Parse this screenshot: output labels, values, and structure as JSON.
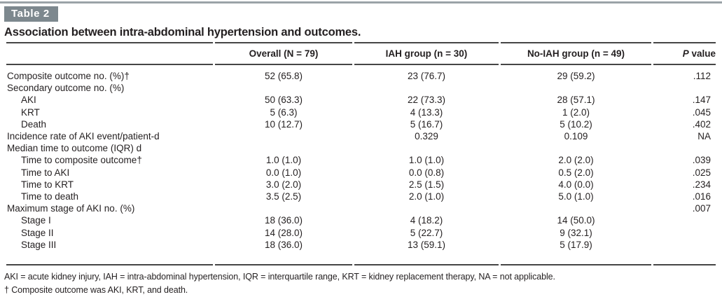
{
  "table_label": "Table 2",
  "title": "Association between intra-abdominal hypertension and outcomes.",
  "columns": [
    "",
    "Overall (N = 79)",
    "IAH group (n = 30)",
    "No-IAH group (n = 49)",
    "P value"
  ],
  "rows": [
    {
      "label": "Composite outcome no. (%)†",
      "indent": 0,
      "overall": "52 (65.8)",
      "iah": "23 (76.7)",
      "no_iah": "29 (59.2)",
      "p": ".112"
    },
    {
      "label": "Secondary outcome no. (%)",
      "indent": 0,
      "overall": "",
      "iah": "",
      "no_iah": "",
      "p": ""
    },
    {
      "label": "AKI",
      "indent": 1,
      "overall": "50 (63.3)",
      "iah": "22 (73.3)",
      "no_iah": "28 (57.1)",
      "p": ".147"
    },
    {
      "label": "KRT",
      "indent": 1,
      "overall": "5 (6.3)",
      "iah": "4 (13.3)",
      "no_iah": "1 (2.0)",
      "p": ".045"
    },
    {
      "label": "Death",
      "indent": 1,
      "overall": "10 (12.7)",
      "iah": "5 (16.7)",
      "no_iah": "5 (10.2)",
      "p": ".402"
    },
    {
      "label": "Incidence rate of AKI event/patient-d",
      "indent": 0,
      "overall": "",
      "iah": "0.329",
      "no_iah": "0.109",
      "p": "NA"
    },
    {
      "label": "Median time to outcome (IQR) d",
      "indent": 0,
      "overall": "",
      "iah": "",
      "no_iah": "",
      "p": ""
    },
    {
      "label": "Time to composite outcome†",
      "indent": 1,
      "overall": "1.0 (1.0)",
      "iah": "1.0 (1.0)",
      "no_iah": "2.0 (2.0)",
      "p": ".039"
    },
    {
      "label": "Time to AKI",
      "indent": 1,
      "overall": "0.0 (1.0)",
      "iah": "0.0 (0.8)",
      "no_iah": "0.5 (2.0)",
      "p": ".025"
    },
    {
      "label": "Time to KRT",
      "indent": 1,
      "overall": "3.0 (2.0)",
      "iah": "2.5 (1.5)",
      "no_iah": "4.0 (0.0)",
      "p": ".234"
    },
    {
      "label": "Time to death",
      "indent": 1,
      "overall": "3.5 (2.5)",
      "iah": "2.0 (1.0)",
      "no_iah": "5.0 (1.0)",
      "p": ".016"
    },
    {
      "label": "Maximum stage of AKI no. (%)",
      "indent": 0,
      "overall": "",
      "iah": "",
      "no_iah": "",
      "p": ".007"
    },
    {
      "label": "Stage I",
      "indent": 1,
      "overall": "18 (36.0)",
      "iah": "4 (18.2)",
      "no_iah": "14 (50.0)",
      "p": ""
    },
    {
      "label": "Stage II",
      "indent": 1,
      "overall": "14 (28.0)",
      "iah": "5 (22.7)",
      "no_iah": "9 (32.1)",
      "p": ""
    },
    {
      "label": "Stage III",
      "indent": 1,
      "overall": "18 (36.0)",
      "iah": "13 (59.1)",
      "no_iah": "5 (17.9)",
      "p": ""
    }
  ],
  "footnotes": [
    "AKI = acute kidney injury, IAH = intra-abdominal hypertension, IQR = interquartile range, KRT = kidney replacement therapy, NA = not applicable.",
    "† Composite outcome was AKI, KRT, and death."
  ],
  "colors": {
    "badge_background": "#7d888e",
    "badge_text": "#ffffff",
    "rule_dark": "#454545",
    "rule_light_top": "#9ba3a8",
    "body_text": "#231f20"
  }
}
